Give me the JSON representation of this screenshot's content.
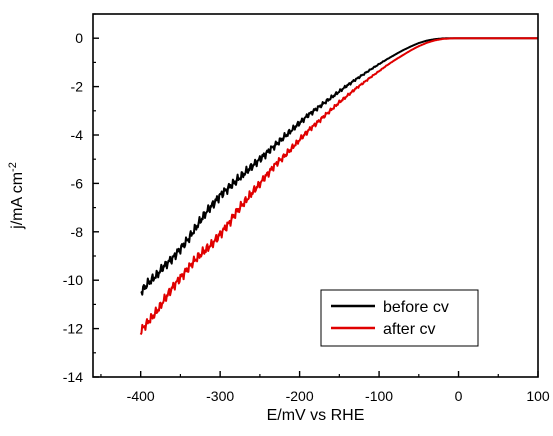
{
  "chart_data": {
    "type": "line",
    "title": "",
    "xlabel": "E/mV vs RHE",
    "ylabel": {
      "text": "j/mA cm",
      "superscript": "-2"
    },
    "xlim": [
      -460,
      100
    ],
    "ylim": [
      -14,
      1
    ],
    "xticks": [
      -400,
      -300,
      -200,
      -100,
      0,
      100
    ],
    "xtick_labels": [
      "-400",
      "-300",
      "-200",
      "-100",
      "0",
      "100"
    ],
    "yticks": [
      0,
      -2,
      -4,
      -6,
      -8,
      -10,
      -12,
      -14
    ],
    "ytick_labels": [
      "0",
      "-2",
      "-4",
      "-6",
      "-8",
      "-10",
      "-12",
      "-14"
    ],
    "grid": false,
    "legend_position": "bottom-right",
    "series": [
      {
        "name": "before cv",
        "color": "#000000",
        "x": [
          -400,
          -390,
          -380,
          -370,
          -360,
          -350,
          -340,
          -330,
          -320,
          -310,
          -300,
          -290,
          -280,
          -270,
          -260,
          -250,
          -240,
          -230,
          -220,
          -210,
          -200,
          -190,
          -180,
          -170,
          -160,
          -150,
          -140,
          -130,
          -120,
          -110,
          -100,
          -90,
          -80,
          -70,
          -60,
          -50,
          -40,
          -30,
          -20,
          -10,
          0,
          20,
          40,
          60,
          80,
          100
        ],
        "y": [
          -10.5,
          -10.1,
          -9.8,
          -9.4,
          -9.1,
          -8.7,
          -8.3,
          -7.8,
          -7.3,
          -6.9,
          -6.5,
          -6.2,
          -5.9,
          -5.6,
          -5.3,
          -5.0,
          -4.7,
          -4.4,
          -4.1,
          -3.8,
          -3.5,
          -3.2,
          -2.95,
          -2.7,
          -2.45,
          -2.2,
          -1.95,
          -1.72,
          -1.5,
          -1.28,
          -1.07,
          -0.87,
          -0.68,
          -0.5,
          -0.34,
          -0.2,
          -0.1,
          -0.04,
          -0.01,
          0.0,
          0.0,
          0.0,
          0.0,
          0.0,
          0.0,
          0.0
        ]
      },
      {
        "name": "after cv",
        "color": "#e00000",
        "x": [
          -400,
          -390,
          -380,
          -370,
          -360,
          -350,
          -340,
          -330,
          -320,
          -310,
          -300,
          -290,
          -280,
          -270,
          -260,
          -250,
          -240,
          -230,
          -220,
          -210,
          -200,
          -190,
          -180,
          -170,
          -160,
          -150,
          -140,
          -130,
          -120,
          -110,
          -100,
          -90,
          -80,
          -70,
          -60,
          -50,
          -40,
          -30,
          -20,
          -10,
          0,
          20,
          40,
          60,
          80,
          100
        ],
        "y": [
          -12.1,
          -11.7,
          -11.3,
          -10.8,
          -10.3,
          -9.9,
          -9.5,
          -9.1,
          -8.8,
          -8.5,
          -8.1,
          -7.7,
          -7.2,
          -6.8,
          -6.4,
          -6.0,
          -5.6,
          -5.2,
          -4.9,
          -4.55,
          -4.2,
          -3.85,
          -3.55,
          -3.25,
          -2.95,
          -2.65,
          -2.38,
          -2.1,
          -1.85,
          -1.6,
          -1.36,
          -1.12,
          -0.9,
          -0.7,
          -0.5,
          -0.33,
          -0.19,
          -0.09,
          -0.03,
          -0.01,
          0.0,
          0.0,
          0.0,
          0.0,
          0.0,
          0.0
        ]
      }
    ]
  }
}
